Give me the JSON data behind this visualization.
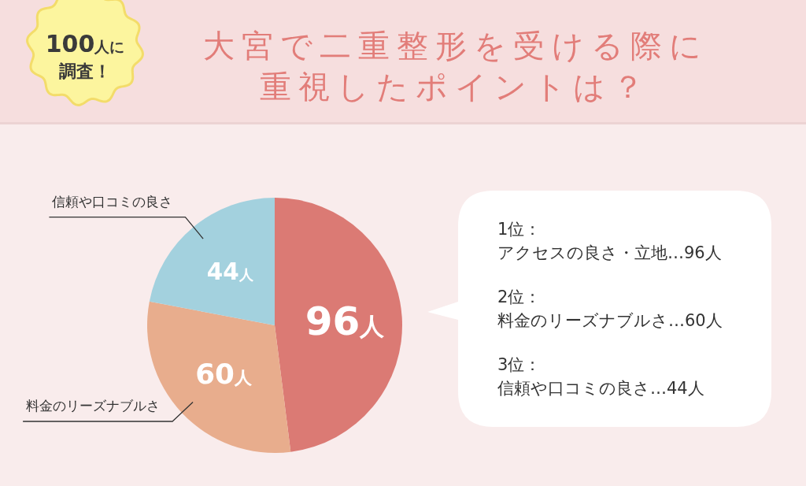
{
  "chart_data": {
    "type": "pie",
    "title": "大宮で二重整形を受ける際に重視したポイントは？",
    "categories": [
      null,
      "料金のリーズナブルさ",
      "信頼や口コミの良さ"
    ],
    "values": [
      96,
      60,
      44
    ],
    "colors": [
      "#db7a74",
      "#e8ad8d",
      "#a3d1de"
    ],
    "value_labels": [
      "96人",
      "60人",
      "44人"
    ],
    "annotations": [
      "100人に調査！",
      "1位：",
      "アクセスの良さ・立地…96人",
      "2位：",
      "料金のリーズナブルさ…60人",
      "3位：",
      "信頼や口コミの良さ…44人"
    ]
  }
}
